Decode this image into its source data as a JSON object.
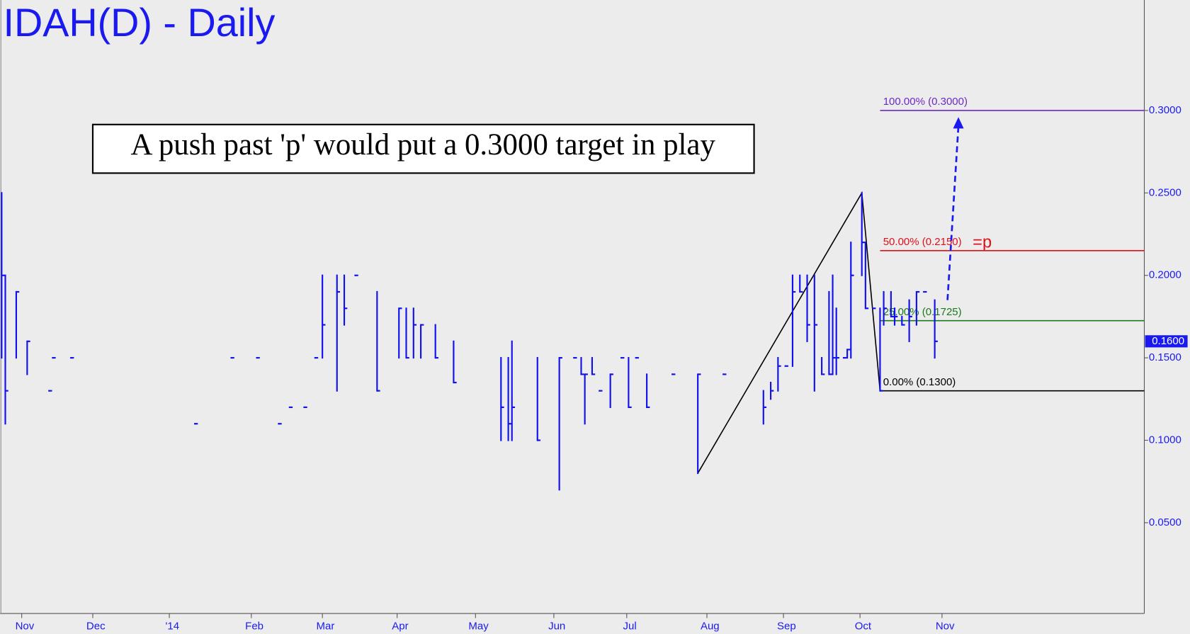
{
  "chart_data": {
    "type": "hlc",
    "title": "IDAH(D) - Daily",
    "annotation": "A push past 'p' would put a 0.3000 target in play",
    "color": "#1010f0",
    "xlim": [
      0,
      313.5
    ],
    "ylim": [
      0,
      0.367
    ],
    "xticks": [
      {
        "value": 5.5,
        "label": "Nov"
      },
      {
        "value": 25,
        "label": "Dec"
      },
      {
        "value": 46,
        "label": "'14"
      },
      {
        "value": 68.5,
        "label": "Feb"
      },
      {
        "value": 88,
        "label": "Mar"
      },
      {
        "value": 108.5,
        "label": "Apr"
      },
      {
        "value": 130,
        "label": "May"
      },
      {
        "value": 151.5,
        "label": "Jun"
      },
      {
        "value": 171.5,
        "label": "Jul"
      },
      {
        "value": 193.5,
        "label": "Aug"
      },
      {
        "value": 214.5,
        "label": "Sep"
      },
      {
        "value": 235.5,
        "label": "Oct"
      },
      {
        "value": 258,
        "label": "Nov"
      }
    ],
    "yticks": [
      {
        "value": 0.05,
        "label": "0.0500"
      },
      {
        "value": 0.1,
        "label": "0.1000"
      },
      {
        "value": 0.15,
        "label": "0.1500"
      },
      {
        "value": 0.2,
        "label": "0.2000"
      },
      {
        "value": 0.25,
        "label": "0.2500"
      },
      {
        "value": 0.3,
        "label": "0.3000"
      }
    ],
    "x": [
      0,
      1,
      4,
      7,
      13,
      14,
      19,
      53,
      63,
      70,
      76,
      79,
      83,
      86,
      88,
      92,
      94,
      97,
      103,
      109,
      111,
      113,
      115,
      119,
      124,
      137,
      139,
      140,
      147,
      153,
      157,
      159,
      160,
      162,
      164,
      167,
      170,
      172,
      174,
      177,
      184,
      191,
      198,
      209,
      211,
      213,
      215,
      217,
      219,
      221,
      223,
      225,
      227,
      228,
      229,
      231,
      232,
      233,
      236,
      237,
      239,
      241,
      242,
      244,
      245,
      247,
      249,
      251,
      253,
      256
    ],
    "high": [
      0.25,
      0.2,
      0.19,
      0.16,
      0.13,
      0.15,
      0.15,
      0.11,
      0.15,
      0.15,
      0.11,
      0.12,
      0.12,
      0.15,
      0.2,
      0.2,
      0.2,
      0.2,
      0.19,
      0.18,
      0.18,
      0.18,
      0.17,
      0.17,
      0.16,
      0.15,
      0.15,
      0.16,
      0.15,
      0.15,
      0.15,
      0.15,
      0.14,
      0.15,
      0.13,
      0.14,
      0.15,
      0.15,
      0.15,
      0.14,
      0.14,
      0.14,
      0.14,
      0.13,
      0.135,
      0.15,
      0.145,
      0.2,
      0.2,
      0.2,
      0.2,
      0.15,
      0.19,
      0.2,
      0.18,
      0.15,
      0.155,
      0.22,
      0.25,
      0.22,
      0.18,
      0.18,
      0.19,
      0.19,
      0.18,
      0.175,
      0.185,
      0.19,
      0.19,
      0.185
    ],
    "low": [
      0.15,
      0.11,
      0.15,
      0.14,
      0.13,
      0.15,
      0.15,
      0.11,
      0.15,
      0.15,
      0.11,
      0.12,
      0.12,
      0.15,
      0.15,
      0.13,
      0.17,
      0.2,
      0.13,
      0.15,
      0.15,
      0.15,
      0.15,
      0.15,
      0.135,
      0.1,
      0.1,
      0.1,
      0.1,
      0.07,
      0.15,
      0.14,
      0.11,
      0.14,
      0.13,
      0.12,
      0.15,
      0.12,
      0.15,
      0.12,
      0.14,
      0.08,
      0.14,
      0.11,
      0.125,
      0.13,
      0.145,
      0.145,
      0.19,
      0.16,
      0.13,
      0.14,
      0.14,
      0.14,
      0.14,
      0.15,
      0.15,
      0.15,
      0.2,
      0.18,
      0.18,
      0.13,
      0.17,
      0.175,
      0.17,
      0.17,
      0.16,
      0.17,
      0.19,
      0.15
    ],
    "close": [
      0.2,
      0.13,
      0.19,
      0.16,
      0.13,
      0.15,
      0.15,
      0.11,
      0.15,
      0.15,
      0.11,
      0.12,
      0.12,
      0.15,
      0.17,
      0.19,
      0.18,
      0.2,
      0.13,
      0.18,
      0.15,
      0.17,
      0.17,
      0.15,
      0.135,
      0.12,
      0.11,
      0.12,
      0.1,
      0.15,
      0.15,
      0.14,
      0.14,
      0.14,
      0.13,
      0.14,
      0.15,
      0.12,
      0.15,
      0.12,
      0.14,
      0.14,
      0.14,
      0.12,
      0.13,
      0.145,
      0.145,
      0.19,
      0.19,
      0.17,
      0.17,
      0.14,
      0.14,
      0.15,
      0.15,
      0.15,
      0.155,
      0.2,
      0.22,
      0.18,
      0.18,
      0.13,
      0.18,
      0.175,
      0.175,
      0.17,
      0.175,
      0.19,
      0.19,
      0.16
    ],
    "last": {
      "value": 0.16,
      "label": "0.1600"
    },
    "swing": {
      "x": [
        191,
        236,
        241
      ],
      "values": [
        0.08,
        0.25,
        0.13
      ]
    },
    "projection": {
      "x": [
        259.5,
        262.5
      ],
      "values": [
        0.185,
        0.296
      ]
    },
    "levels": [
      {
        "label": "100.00% (0.3000)",
        "value": 0.3,
        "color": "#6a2bc4"
      },
      {
        "label": "50.00% (0.2150)",
        "value": 0.215,
        "color": "#e0101a"
      },
      {
        "label": "25.00% (0.1725)",
        "value": 0.1725,
        "color": "#1a7a1a"
      },
      {
        "label": "0.00% (0.1300)",
        "value": 0.13,
        "color": "#000000"
      }
    ],
    "levels_start": 241,
    "marker": "=p"
  }
}
